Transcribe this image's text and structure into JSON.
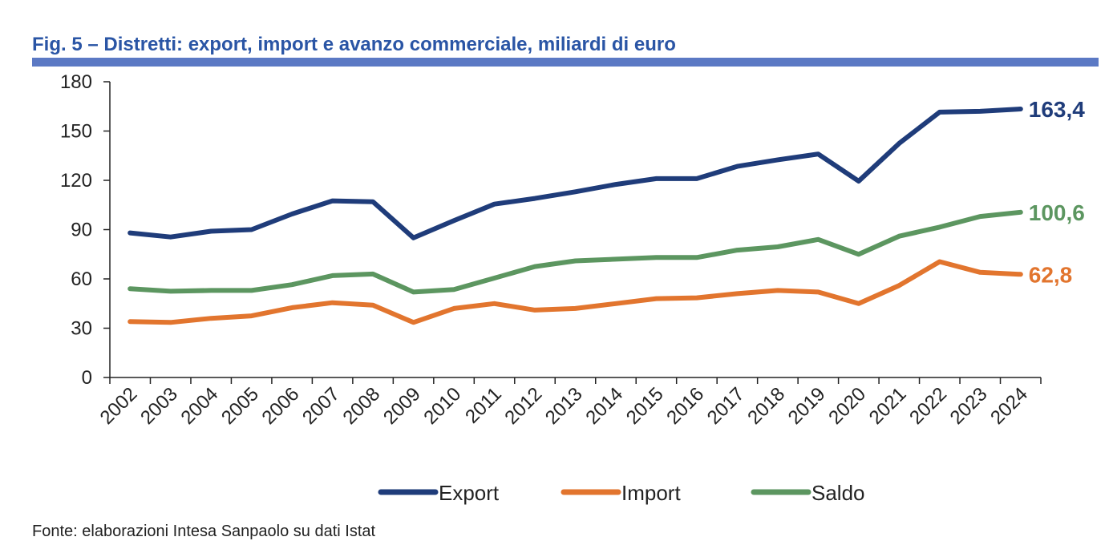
{
  "figure": {
    "title": "Fig. 5 – Distretti: export, import e avanzo commerciale, miliardi di euro",
    "source": "Fonte: elaborazioni Intesa Sanpaolo su dati Istat"
  },
  "chart_data": {
    "type": "line",
    "x": [
      "2002",
      "2003",
      "2004",
      "2005",
      "2006",
      "2007",
      "2008",
      "2009",
      "2010",
      "2011",
      "2012",
      "2013",
      "2014",
      "2015",
      "2016",
      "2017",
      "2018",
      "2019",
      "2020",
      "2021",
      "2022",
      "2023",
      "2024"
    ],
    "ylim": [
      0,
      180
    ],
    "yticks": [
      0,
      30,
      60,
      90,
      120,
      150,
      180
    ],
    "grid": false,
    "legend_position": "bottom",
    "series": [
      {
        "name": "Export",
        "color": "#1F3C7A",
        "values": [
          88,
          85.5,
          89,
          90,
          99.5,
          107.5,
          107,
          85,
          95.5,
          105.5,
          109,
          113,
          117.5,
          121,
          121,
          128.5,
          132.5,
          136,
          119.5,
          142.5,
          161.5,
          162,
          163.4
        ],
        "end_label": "163,4"
      },
      {
        "name": "Import",
        "color": "#E2752E",
        "values": [
          34,
          33.5,
          36,
          37.5,
          42.5,
          45.5,
          44,
          33.5,
          42,
          45,
          41,
          42,
          45,
          48,
          48.5,
          51,
          53,
          52,
          45,
          56,
          70.5,
          64,
          62.8
        ],
        "end_label": "62,8"
      },
      {
        "name": "Saldo",
        "color": "#5C9660",
        "values": [
          54,
          52.5,
          53,
          53,
          56.5,
          62,
          63,
          52,
          53.5,
          60.5,
          67.5,
          71,
          72,
          73,
          73,
          77.5,
          79.5,
          84,
          75,
          86,
          91.5,
          98,
          100.6
        ],
        "end_label": "100,6"
      }
    ]
  }
}
